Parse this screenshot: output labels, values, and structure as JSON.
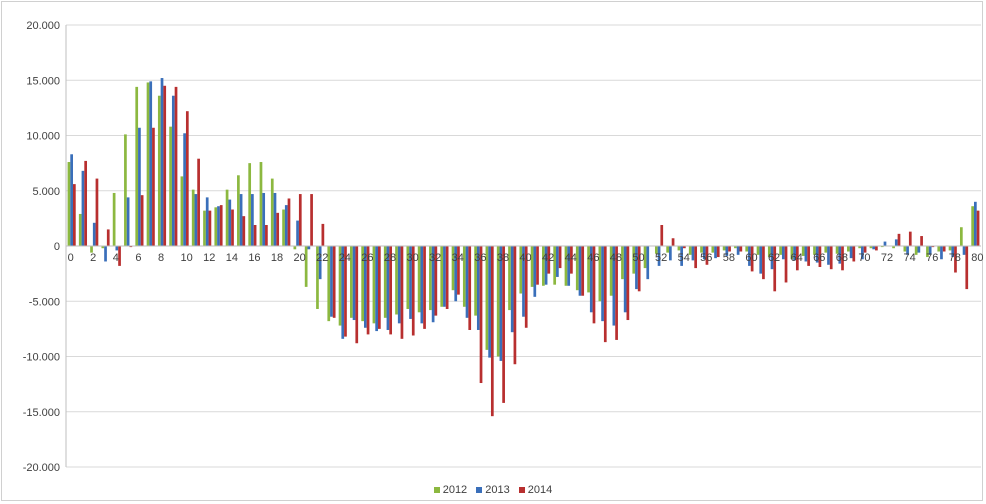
{
  "chart_data": {
    "type": "bar",
    "x": [
      0,
      1,
      2,
      3,
      4,
      5,
      6,
      7,
      8,
      9,
      10,
      11,
      12,
      13,
      14,
      15,
      16,
      17,
      18,
      19,
      20,
      21,
      22,
      23,
      24,
      25,
      26,
      27,
      28,
      29,
      30,
      31,
      32,
      33,
      34,
      35,
      36,
      37,
      38,
      39,
      40,
      41,
      42,
      43,
      44,
      45,
      46,
      47,
      48,
      49,
      50,
      51,
      52,
      53,
      54,
      55,
      56,
      57,
      58,
      59,
      60,
      61,
      62,
      63,
      64,
      65,
      66,
      67,
      68,
      69,
      70,
      71,
      72,
      73,
      74,
      75,
      76,
      77,
      78,
      79,
      80
    ],
    "x_tick_labels": [
      "0",
      "2",
      "4",
      "6",
      "8",
      "10",
      "12",
      "14",
      "16",
      "18",
      "20",
      "22",
      "24",
      "26",
      "28",
      "30",
      "32",
      "34",
      "36",
      "38",
      "40",
      "42",
      "44",
      "46",
      "48",
      "50",
      "52",
      "54",
      "56",
      "58",
      "60",
      "62",
      "64",
      "66",
      "68",
      "70",
      "72",
      "74",
      "76",
      "78",
      "80"
    ],
    "series": [
      {
        "name": "2012",
        "color": "#8cb840",
        "values": [
          7600,
          2900,
          -600,
          -200,
          4800,
          10100,
          14400,
          14800,
          13600,
          10800,
          6300,
          5100,
          3200,
          3500,
          5100,
          6400,
          7500,
          7600,
          6100,
          3300,
          -300,
          -3700,
          -5700,
          -6800,
          -7200,
          -6500,
          -6800,
          -7000,
          -6500,
          -6200,
          -5700,
          -6000,
          -5800,
          -5500,
          -4000,
          -5500,
          -6300,
          -9400,
          -10000,
          -5800,
          -4300,
          -3700,
          -3600,
          -3500,
          -3600,
          -4000,
          -4200,
          -5000,
          -4500,
          -3000,
          -2500,
          -2000,
          -700,
          -600,
          -400,
          -800,
          -600,
          -600,
          -400,
          -200,
          -500,
          -800,
          -1000,
          -800,
          -1200,
          -900,
          -800,
          -600,
          -700,
          -500,
          -200,
          -200,
          -100,
          -200,
          -500,
          -800,
          -1000,
          -500,
          -400,
          1700,
          3600
        ]
      },
      {
        "name": "2013",
        "color": "#3a6fba",
        "values": [
          8300,
          6800,
          2100,
          -1400,
          -400,
          4400,
          10700,
          14900,
          15200,
          13600,
          10200,
          4700,
          4400,
          3600,
          4200,
          4700,
          4700,
          4800,
          4800,
          3700,
          2300,
          -300,
          -3000,
          -6400,
          -8400,
          -6700,
          -7400,
          -7700,
          -7600,
          -7000,
          -6600,
          -7000,
          -6900,
          -5500,
          -5000,
          -6500,
          -7600,
          -10100,
          -10400,
          -7800,
          -6400,
          -4600,
          -3500,
          -2800,
          -3600,
          -4500,
          -6000,
          -6800,
          -7200,
          -6000,
          -3900,
          -3000,
          -1800,
          -1300,
          -1800,
          -1300,
          -1200,
          -1100,
          -900,
          -800,
          -1800,
          -2500,
          -2100,
          -1200,
          -1300,
          -1400,
          -1500,
          -1700,
          -1600,
          -1100,
          -1200,
          -300,
          400,
          600,
          -800,
          -600,
          -800,
          -1200,
          -1000,
          -800,
          4000
        ]
      },
      {
        "name": "2014",
        "color": "#b82f2f",
        "values": [
          5600,
          7700,
          6100,
          1500,
          -1800,
          -100,
          4600,
          10700,
          14500,
          14400,
          12200,
          7900,
          3200,
          3700,
          3300,
          2700,
          1900,
          1900,
          3000,
          4300,
          4700,
          4700,
          2000,
          -6500,
          -8200,
          -8800,
          -8000,
          -7500,
          -8000,
          -8400,
          -8100,
          -7500,
          -6300,
          -5700,
          -4400,
          -7600,
          -12400,
          -15400,
          -14200,
          -10700,
          -7400,
          -3500,
          -2500,
          -2000,
          -2500,
          -4500,
          -7000,
          -8700,
          -8500,
          -6700,
          -4100,
          0,
          1900,
          700,
          -200,
          -2000,
          -1700,
          -1000,
          -500,
          -500,
          -2300,
          -3000,
          -4100,
          -3300,
          -2200,
          -1800,
          -1900,
          -2100,
          -2200,
          -1400,
          -600,
          -400,
          0,
          1100,
          1300,
          900,
          -100,
          -500,
          -2400,
          -3900,
          3200
        ]
      }
    ],
    "ylim": [
      -20000,
      20000
    ],
    "y_ticks": [
      -20000,
      -15000,
      -10000,
      -5000,
      0,
      5000,
      10000,
      15000,
      20000
    ],
    "y_tick_labels": [
      "-20.000",
      "-15.000",
      "-10.000",
      "-5.000",
      "0",
      "5.000",
      "10.000",
      "15.000",
      "20.000"
    ],
    "grid": "horizontal",
    "legend_position": "bottom"
  }
}
